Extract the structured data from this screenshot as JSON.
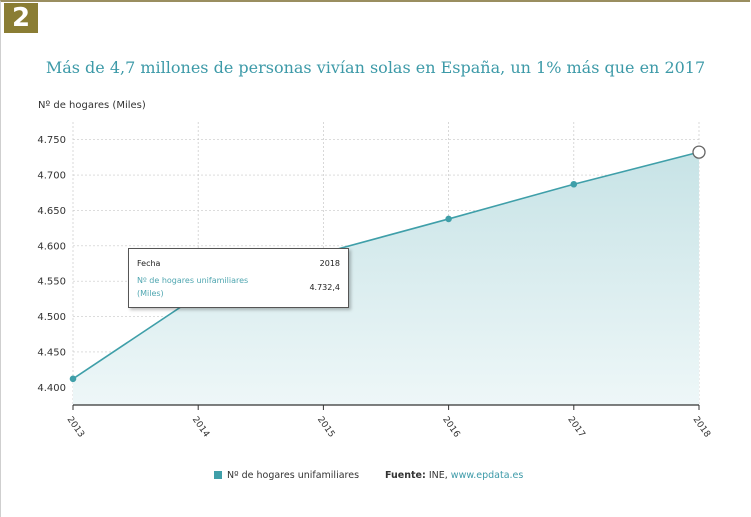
{
  "badge": "2",
  "chart_data": {
    "type": "area",
    "title": "Más de 4,7 millones de personas vivían solas en España, un 1% más que en 2017",
    "ylabel": "Nº de hogares (Miles)",
    "xlabel": "",
    "categories": [
      "2013",
      "2014",
      "2015",
      "2016",
      "2017",
      "2018"
    ],
    "series": [
      {
        "name": "Nº de hogares unifamiliares",
        "values": [
          4412,
          4530,
          4590,
          4638,
          4687,
          4732.4
        ]
      }
    ],
    "ylim": [
      4375,
      4775
    ],
    "yticks": [
      {
        "value": 4400,
        "label": "4.400"
      },
      {
        "value": 4450,
        "label": "4.450"
      },
      {
        "value": 4500,
        "label": "4.500"
      },
      {
        "value": 4550,
        "label": "4.550"
      },
      {
        "value": 4600,
        "label": "4.600"
      },
      {
        "value": 4650,
        "label": "4.650"
      },
      {
        "value": 4700,
        "label": "4.700"
      },
      {
        "value": 4750,
        "label": "4.750"
      }
    ],
    "grid": true,
    "colors": {
      "line": "#3f9fa9",
      "fill_top": "#c7e3e6",
      "fill_bottom": "#eef7f8",
      "grid": "#c8c8c8"
    },
    "tooltip": {
      "date_label": "Fecha",
      "date_value": "2018",
      "series_label": "Nº de hogares unifamiliares (Miles)",
      "value": "4.732,4"
    },
    "legend_position": "bottom"
  },
  "legend": {
    "series_label": "Nº de hogares unifamiliares",
    "source_label": "Fuente:",
    "source_text": " INE, ",
    "source_url": "www.epdata.es"
  }
}
